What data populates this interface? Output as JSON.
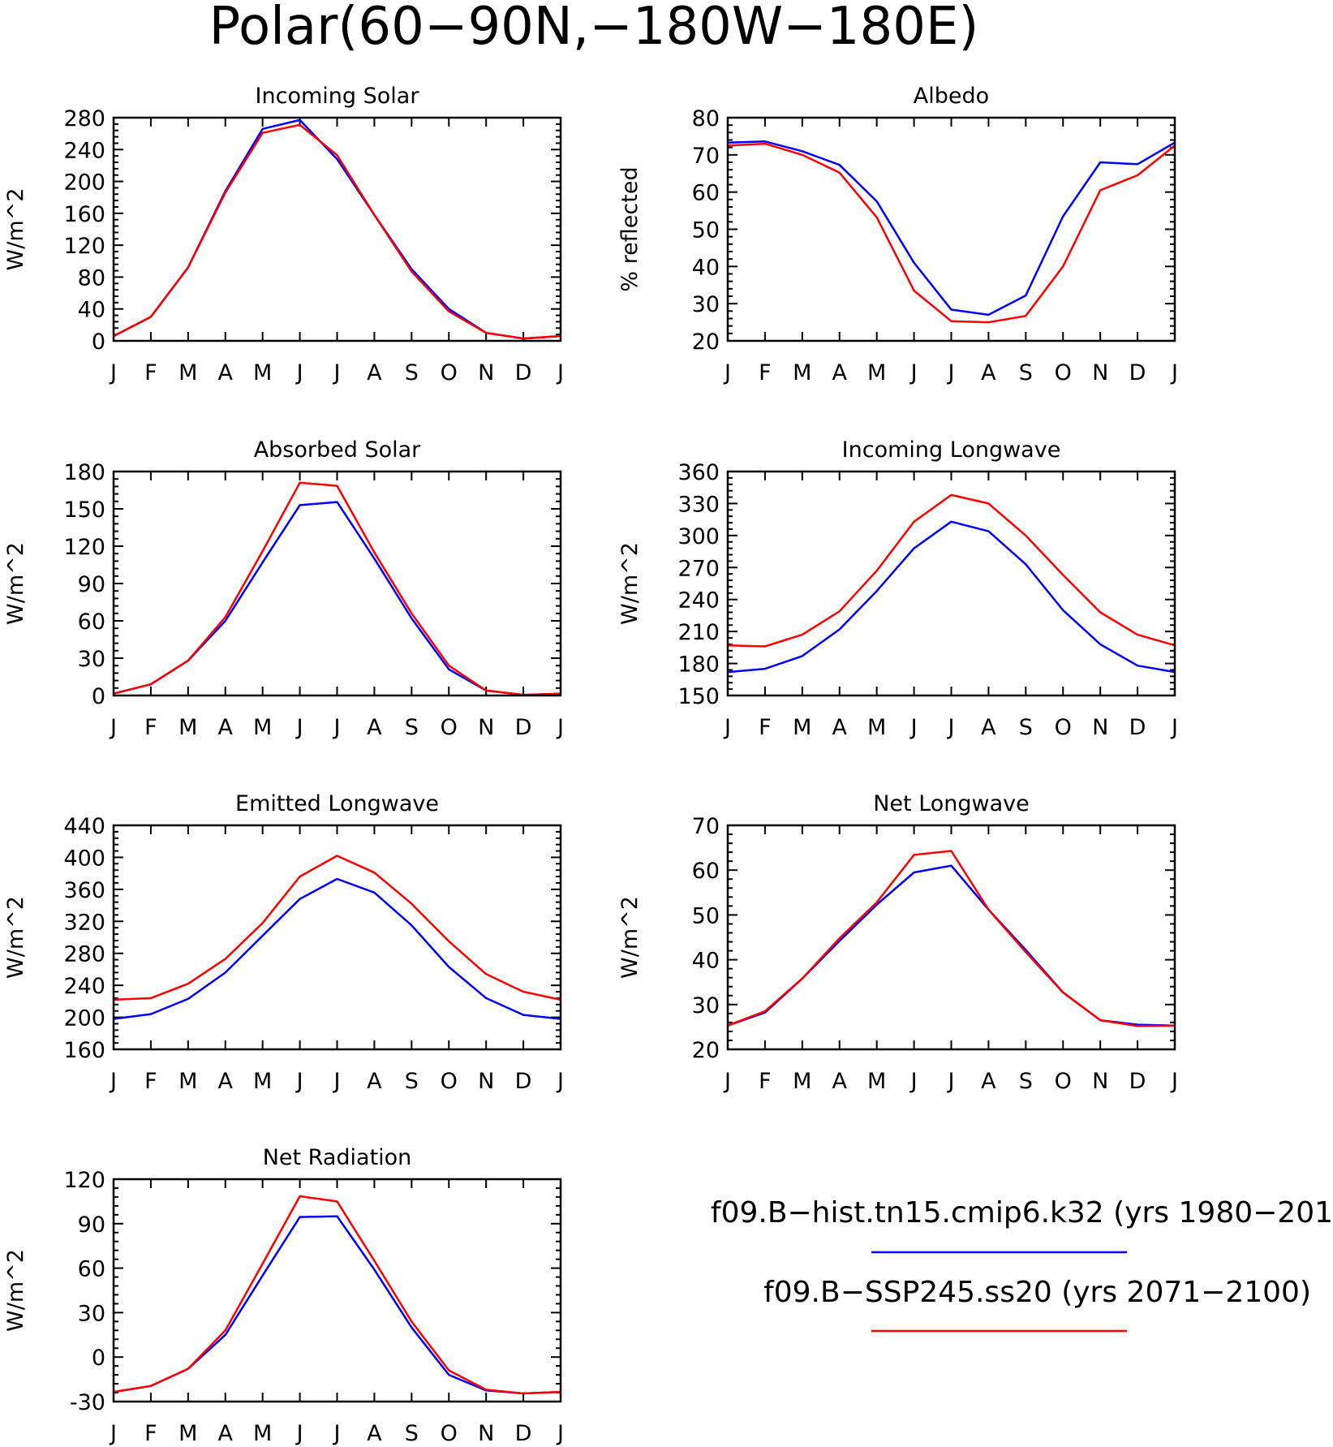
{
  "title": "Polar(60−90N,−180W−180E)",
  "legend": [
    {
      "label": "f09.B−hist.tn15.cmip6.k32 (yrs 1980−201",
      "color": "#0000ff"
    },
    {
      "label": "f09.B−SSP245.ss20 (yrs 2071−2100)",
      "color": "#ff0000"
    }
  ],
  "chart_data": [
    {
      "type": "line",
      "title": "Incoming Solar",
      "ylabel": "W/m^2",
      "xlabel": "",
      "categories": [
        "J",
        "F",
        "M",
        "A",
        "M",
        "J",
        "J",
        "A",
        "S",
        "O",
        "N",
        "D",
        "J"
      ],
      "ylim": [
        0,
        280
      ],
      "yticks": [
        0,
        40,
        80,
        120,
        160,
        200,
        240,
        280
      ],
      "grid": false,
      "series": [
        {
          "color": "#0000ff",
          "values": [
            6,
            30,
            92,
            188,
            266,
            277,
            228,
            158,
            90,
            40,
            10,
            3,
            6
          ]
        },
        {
          "color": "#ff0000",
          "values": [
            6,
            30,
            92,
            186,
            261,
            271,
            233,
            158,
            87,
            37,
            10,
            3,
            6
          ]
        }
      ]
    },
    {
      "type": "line",
      "title": "Albedo",
      "ylabel": "% reflected",
      "xlabel": "",
      "categories": [
        "J",
        "F",
        "M",
        "A",
        "M",
        "J",
        "J",
        "A",
        "S",
        "O",
        "N",
        "D",
        "J"
      ],
      "ylim": [
        20,
        80
      ],
      "yticks": [
        20,
        30,
        40,
        50,
        60,
        70,
        80
      ],
      "grid": false,
      "series": [
        {
          "color": "#0000ff",
          "values": [
            73.3,
            73.6,
            71,
            67.3,
            57.5,
            41,
            28.4,
            27,
            32.2,
            53.5,
            68,
            67.5,
            73.3
          ]
        },
        {
          "color": "#ff0000",
          "values": [
            72.5,
            73,
            70,
            65.2,
            53.2,
            33.5,
            25.3,
            25,
            26.7,
            40,
            60.5,
            64.5,
            72.5
          ]
        }
      ]
    },
    {
      "type": "line",
      "title": "Absorbed Solar",
      "ylabel": "W/m^2",
      "xlabel": "",
      "categories": [
        "J",
        "F",
        "M",
        "A",
        "M",
        "J",
        "J",
        "A",
        "S",
        "O",
        "N",
        "D",
        "J"
      ],
      "ylim": [
        0,
        180
      ],
      "yticks": [
        0,
        30,
        60,
        90,
        120,
        150,
        180
      ],
      "grid": false,
      "series": [
        {
          "color": "#0000ff",
          "values": [
            1.5,
            9,
            28,
            60,
            107,
            153,
            155.5,
            110,
            62,
            21,
            4,
            0.5,
            1.5
          ]
        },
        {
          "color": "#ff0000",
          "values": [
            1.5,
            9,
            28,
            63,
            116,
            171,
            168.5,
            115,
            66,
            24,
            4,
            0.5,
            1.5
          ]
        }
      ]
    },
    {
      "type": "line",
      "title": "Incoming Longwave",
      "ylabel": "W/m^2",
      "xlabel": "",
      "categories": [
        "J",
        "F",
        "M",
        "A",
        "M",
        "J",
        "J",
        "A",
        "S",
        "O",
        "N",
        "D",
        "J"
      ],
      "ylim": [
        150,
        360
      ],
      "yticks": [
        150,
        180,
        210,
        240,
        270,
        300,
        330,
        360
      ],
      "grid": false,
      "series": [
        {
          "color": "#0000ff",
          "values": [
            172,
            175,
            187,
            212,
            248,
            288,
            313,
            304,
            273,
            230,
            198,
            178,
            172
          ]
        },
        {
          "color": "#ff0000",
          "values": [
            197,
            196,
            207,
            229,
            267,
            313,
            338,
            330,
            300,
            263,
            228,
            207,
            197
          ]
        }
      ]
    },
    {
      "type": "line",
      "title": "Emitted Longwave",
      "ylabel": "W/m^2",
      "xlabel": "",
      "categories": [
        "J",
        "F",
        "M",
        "A",
        "M",
        "J",
        "J",
        "A",
        "S",
        "O",
        "N",
        "D",
        "J"
      ],
      "ylim": [
        160,
        440
      ],
      "yticks": [
        160,
        200,
        240,
        280,
        320,
        360,
        400,
        440
      ],
      "grid": false,
      "series": [
        {
          "color": "#0000ff",
          "values": [
            198,
            204,
            223,
            256,
            302,
            348,
            373,
            356,
            315,
            263,
            224,
            203,
            198
          ]
        },
        {
          "color": "#ff0000",
          "values": [
            222,
            224,
            242,
            273,
            318,
            376,
            402,
            381,
            342,
            295,
            254,
            232,
            222
          ]
        }
      ]
    },
    {
      "type": "line",
      "title": "Net Longwave",
      "ylabel": "W/m^2",
      "xlabel": "",
      "categories": [
        "J",
        "F",
        "M",
        "A",
        "M",
        "J",
        "J",
        "A",
        "S",
        "O",
        "N",
        "D",
        "J"
      ],
      "ylim": [
        20,
        70
      ],
      "yticks": [
        20,
        30,
        40,
        50,
        60,
        70
      ],
      "grid": false,
      "series": [
        {
          "color": "#0000ff",
          "values": [
            25.3,
            28.2,
            35.8,
            44.2,
            52.3,
            59.5,
            61,
            51.2,
            42.2,
            32.7,
            26.5,
            25.5,
            25.3
          ]
        },
        {
          "color": "#ff0000",
          "values": [
            25.3,
            28.5,
            35.8,
            44.8,
            52.8,
            63.4,
            64.3,
            51.2,
            41.7,
            32.7,
            26.5,
            25.2,
            25.3
          ]
        }
      ]
    },
    {
      "type": "line",
      "title": "Net Radiation",
      "ylabel": "W/m^2",
      "xlabel": "",
      "categories": [
        "J",
        "F",
        "M",
        "A",
        "M",
        "J",
        "J",
        "A",
        "S",
        "O",
        "N",
        "D",
        "J"
      ],
      "ylim": [
        -30,
        120
      ],
      "yticks": [
        -30,
        0,
        30,
        60,
        90,
        120
      ],
      "grid": false,
      "series": [
        {
          "color": "#0000ff",
          "values": [
            -23.5,
            -19.5,
            -8,
            15,
            55,
            94.5,
            95,
            59,
            20,
            -12,
            -22.5,
            -24.5,
            -23.5
          ]
        },
        {
          "color": "#ff0000",
          "values": [
            -23.5,
            -19.5,
            -8,
            18,
            63,
            108.5,
            105,
            65,
            24,
            -9,
            -22,
            -24.5,
            -23.5
          ]
        }
      ]
    }
  ]
}
